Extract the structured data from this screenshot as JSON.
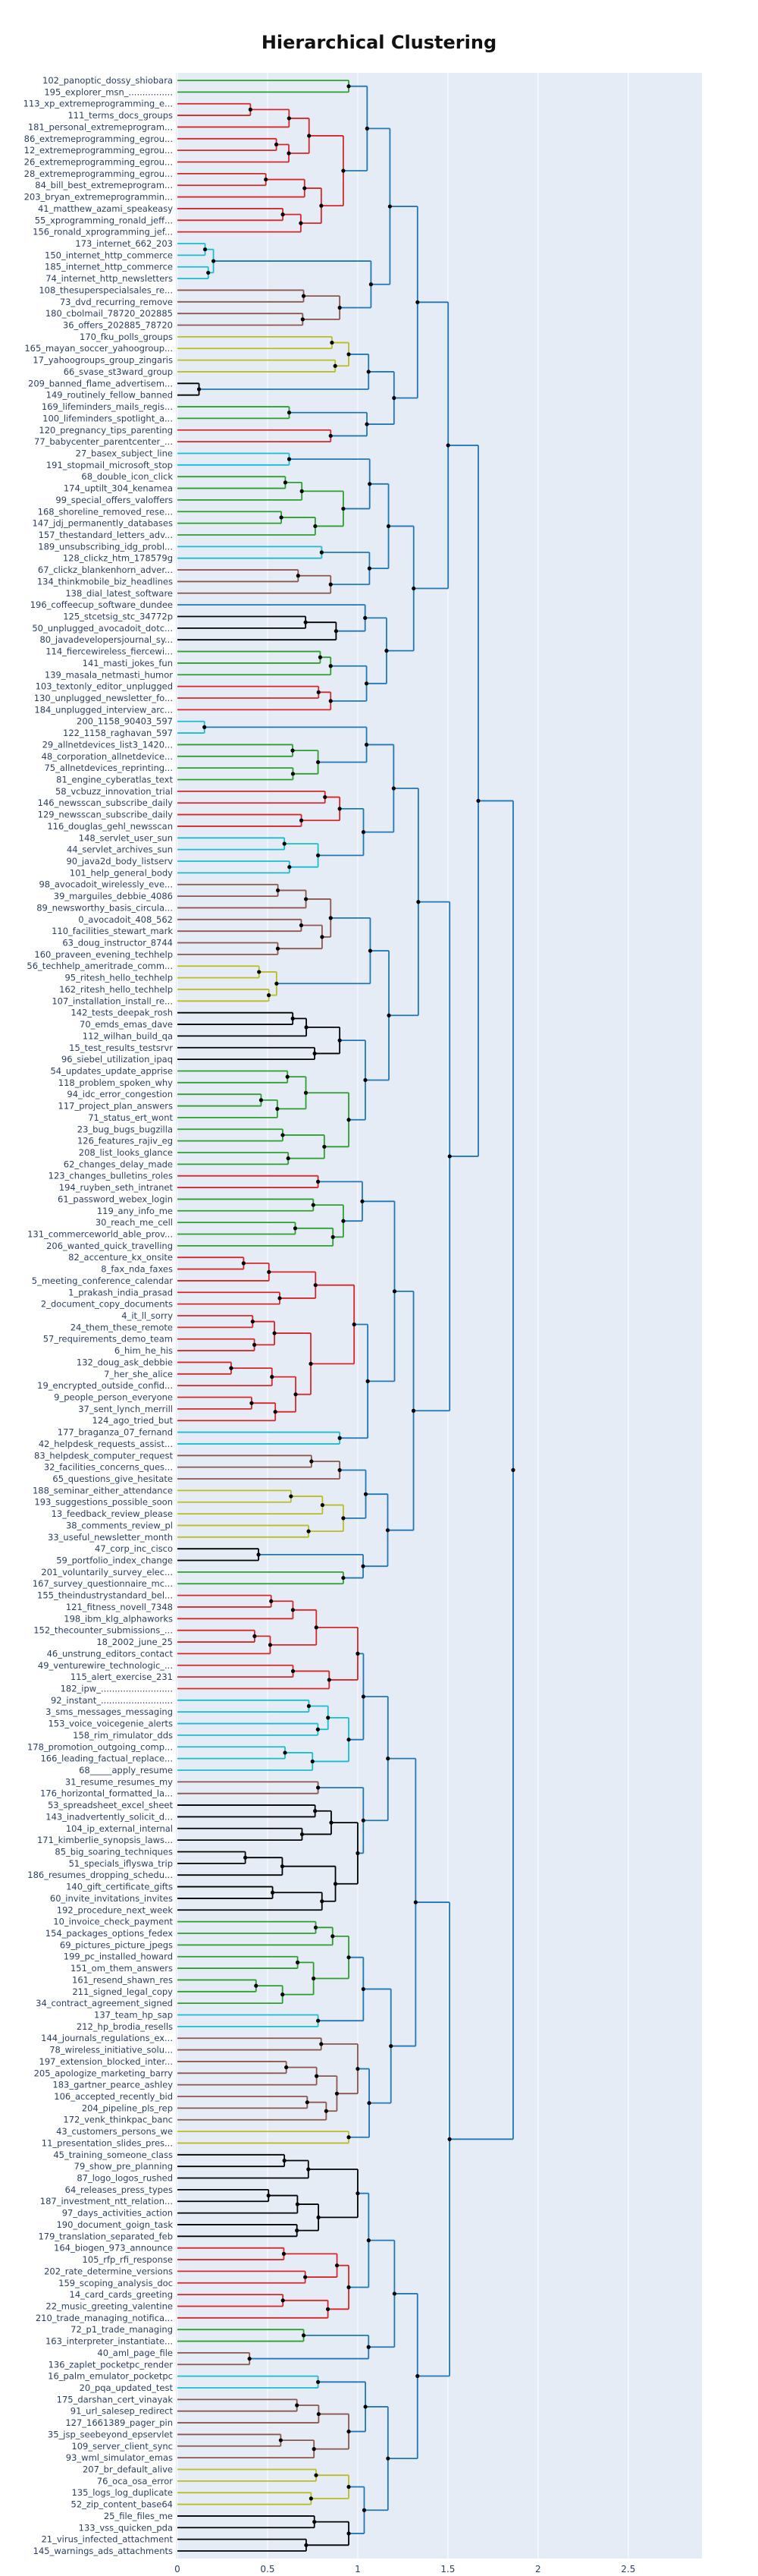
{
  "chart_data": {
    "type": "dendrogram",
    "title": "Hierarchical Clustering",
    "orientation": "horizontal",
    "xlim": [
      0,
      2.9
    ],
    "x_ticks": [
      0,
      0.5,
      1,
      1.5,
      2,
      2.5
    ],
    "grid": true,
    "colors": {
      "plot_bg": "#e5ecf6",
      "grid": "#ffffff",
      "text": "#2a3f5f",
      "upper_links": "#1f77b4",
      "cluster_palette": [
        "#2ca02c",
        "#d62728",
        "#17becf",
        "#8c564b",
        "#bcbd22",
        "#000000",
        "#1f77b4"
      ]
    },
    "leaves": [
      "102_panoptic_dossy_shiobara",
      "195_explorer_msn_................",
      "113_xp_extremeprogramming_e...",
      "111_terms_docs_groups",
      "181_personal_extremeprogram...",
      "86_extremeprogramming_egrou...",
      "12_extremeprogramming_egrou...",
      "26_extremeprogramming_egrou...",
      "28_extremeprogramming_egrou...",
      "84_bill_best_extremeprogram...",
      "203_bryan_extremeprogrammin...",
      "41_matthew_azami_speakeasy",
      "55_xprogramming_ronald_jeff...",
      "156_ronald_xprogramming_jef...",
      "173_internet_662_203",
      "150_internet_http_commerce",
      "185_internet_http_commerce",
      "74_internet_http_newsletters",
      "108_thesuperspecialsales_re...",
      "73_dvd_recurring_remove",
      "180_cbolmail_78720_202885",
      "36_offers_202885_78720",
      "170_fku_polls_groups",
      "165_mayan_soccer_yahoogroup...",
      "17_yahoogroups_group_zingaris",
      "66_svase_st3ward_group",
      "209_banned_flame_advertisem...",
      "149_routinely_fellow_banned",
      "169_lifeminders_mails_regis...",
      "100_lifeminders_spotlight_a...",
      "120_pregnancy_tips_parenting",
      "77_babycenter_parentcenter_...",
      "27_basex_subject_line",
      "191_stopmail_microsoft_stop",
      "68_double_icon_click",
      "174_uptilt_304_kenamea",
      "99_special_offers_valoffers",
      "168_shoreline_removed_rese...",
      "147_jdj_permanently_databases",
      "157_thestandard_letters_adv...",
      "189_unsubscribing_idg_probl...",
      "128_clickz_htm_178579g",
      "67_clickz_blankenhorn_adver...",
      "134_thinkmobile_biz_headlines",
      "138_dial_latest_software",
      "196_coffeecup_software_dundee",
      "125_stcetsig_stc_34772p",
      "50_unplugged_avocadoit_dotc...",
      "80_javadevelopersjournal_sy...",
      "114_fiercewireless_fiercewi...",
      "141_masti_jokes_fun",
      "139_masala_netmasti_humor",
      "103_textonly_editor_unplugged",
      "130_unplugged_newsletter_fo...",
      "184_unplugged_interview_arc...",
      "200_1158_90403_597",
      "122_1158_raghavan_597",
      "29_allnetdevices_list3_1420...",
      "48_corporation_allnetdevice...",
      "75_allnetdevices_reprinting...",
      "81_engine_cyberatlas_text",
      "58_vcbuzz_innovation_trial",
      "146_newsscan_subscribe_daily",
      "129_newsscan_subscribe_daily",
      "116_douglas_gehl_newsscan",
      "148_servlet_user_sun",
      "44_servlet_archives_sun",
      "90_java2d_body_listserv",
      "101_help_general_body",
      "98_avocadoit_wirelessly_eve...",
      "39_marguiles_debbie_4086",
      "89_newsworthy_basis_circula...",
      "0_avocadoit_408_562",
      "110_facilities_stewart_mark",
      "63_doug_instructor_8744",
      "160_praveen_evening_techhelp",
      "56_techhelp_ameritrade_comm...",
      "95_ritesh_hello_techhelp",
      "162_ritesh_hello_techhelp",
      "107_installation_install_re...",
      "142_tests_deepak_rosh",
      "70_emds_emas_dave",
      "112_wilhan_build_qa",
      "15_test_results_testsrvr",
      "96_siebel_utilization_ipaq",
      "54_updates_update_apprise",
      "118_problem_spoken_why",
      "94_idc_error_congestion",
      "117_project_plan_answers",
      "71_status_ert_wont",
      "23_bug_bugs_bugzilla",
      "126_features_rajiv_eg",
      "208_list_looks_glance",
      "62_changes_delay_made",
      "123_changes_bulletins_roles",
      "194_ruyben_seth_intranet",
      "61_password_webex_login",
      "119_any_info_me",
      "30_reach_me_cell",
      "131_commerceworld_able_prov...",
      "206_wanted_quick_travelling",
      "82_accenture_kx_onsite",
      "8_fax_nda_faxes",
      "5_meeting_conference_calendar",
      "1_prakash_india_prasad",
      "2_document_copy_documents",
      "4_it_ll_sorry",
      "24_them_these_remote",
      "57_requirements_demo_team",
      "6_him_he_his",
      "132_doug_ask_debbie",
      "7_her_she_alice",
      "19_encrypted_outside_confid...",
      "9_people_person_everyone",
      "37_sent_lynch_merrill",
      "124_ago_tried_but",
      "177_braganza_07_fernand",
      "42_helpdesk_requests_assist...",
      "83_helpdesk_computer_request",
      "32_facilities_concerns_ques...",
      "65_questions_give_hesitate",
      "188_seminar_either_attendance",
      "193_suggestions_possible_soon",
      "13_feedback_review_please",
      "38_comments_review_pl",
      "33_useful_newsletter_month",
      "47_corp_inc_cisco",
      "59_portfolio_index_change",
      "201_voluntarily_survey_elec...",
      "167_survey_questionnaire_mc...",
      "155_theindustrystandard_bel...",
      "121_fitness_novell_7348",
      "198_ibm_klg_alphaworks",
      "152_thecounter_submissions_...",
      "18_2002_june_25",
      "46_unstrung_editors_contact",
      "49_venturewire_technologic_...",
      "115_alert_exercise_231",
      "182_ipw_..........................",
      "92_instant_..........................",
      "3_sms_messages_messaging",
      "153_voice_voicegenie_alerts",
      "158_rim_rimulator_dds",
      "178_promotion_outgoing_comp...",
      "166_leading_factual_replace...",
      "68_____apply_resume",
      "31_resume_resumes_my",
      "176_horizontal_formatted_la...",
      "53_spreadsheet_excel_sheet",
      "143_inadvertently_solicit_d...",
      "104_ip_external_internal",
      "171_kimberlie_synopsis_laws...",
      "85_big_soaring_techniques",
      "51_specials_iflyswa_trip",
      "186_resumes_dropping_schedu...",
      "140_gift_certificate_gifts",
      "60_invite_invitations_invites",
      "192_procedure_next_week",
      "10_invoice_check_payment",
      "154_packages_options_fedex",
      "69_pictures_picture_jpegs",
      "199_pc_installed_howard",
      "151_om_them_answers",
      "161_resend_shawn_res",
      "211_signed_legal_copy",
      "34_contract_agreement_signed",
      "137_team_hp_sap",
      "212_hp_brodia_resells",
      "144_journals_regulations_ex...",
      "78_wireless_initiative_solu...",
      "197_extension_blocked_inter...",
      "205_apologize_marketing_barry",
      "183_gartner_pearce_ashley",
      "106_accepted_recently_bid",
      "204_pipeline_pls_rep",
      "172_venk_thinkpac_banc",
      "43_customers_persons_we",
      "11_presentation_slides_pres...",
      "45_training_someone_class",
      "79_show_pre_planning",
      "87_logo_logos_rushed",
      "64_releases_press_types",
      "187_investment_ntt_relation...",
      "97_days_activities_action",
      "190_document_goign_task",
      "179_translation_separated_feb",
      "164_biogen_973_announce",
      "105_rfp_rfi_response",
      "202_rate_determine_versions",
      "159_scoping_analysis_doc",
      "14_card_cards_greeting",
      "22_music_greeting_valentine",
      "210_trade_managing_notifica...",
      "72_p1_trade_managing",
      "163_interpreter_instantiate...",
      "40_aml_page_file",
      "136_zaplet_pocketpc_render",
      "16_palm_emulator_pocketpc",
      "20_pqa_updated_test",
      "175_darshan_cert_vinayak",
      "91_url_salesep_redirect",
      "127_1661389_pager_pin",
      "35_jsp_seebeyond_epservlet",
      "109_server_client_sync",
      "93_wml_simulator_emas",
      "207_br_default_alive",
      "76_oca_osa_error",
      "135_logs_log_duplicate",
      "52_zip_content_base64",
      "25_file_files_me",
      "133_vss_quicken_pda",
      "21_virus_infected_attachment",
      "145_warnings_ads_attachments"
    ]
  }
}
